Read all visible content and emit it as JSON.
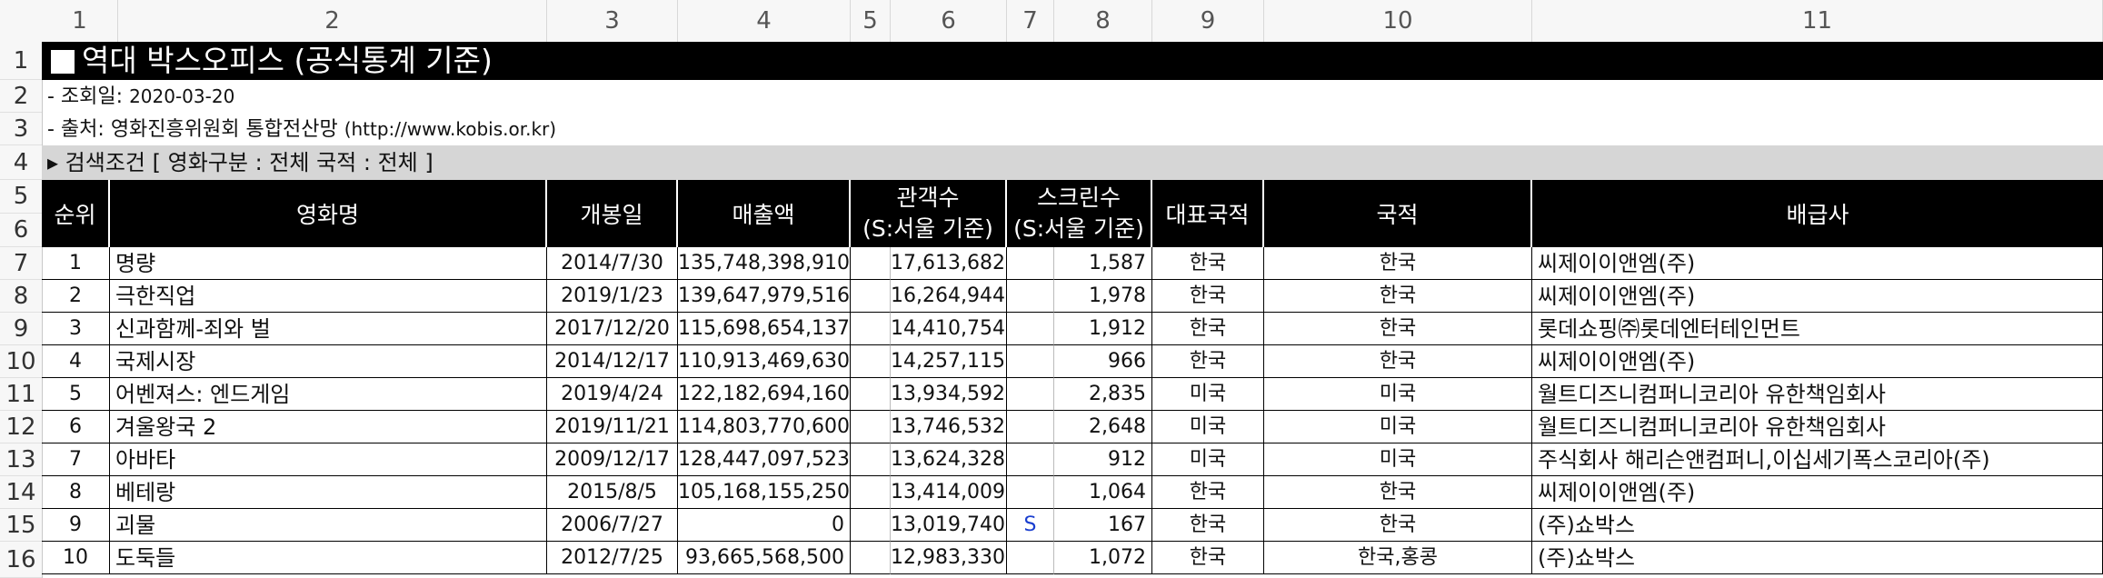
{
  "column_headers": [
    "1",
    "2",
    "3",
    "4",
    "5",
    "6",
    "7",
    "8",
    "9",
    "10",
    "11"
  ],
  "row_headers": [
    "1",
    "2",
    "3",
    "4",
    "5",
    "6",
    "7",
    "8",
    "9",
    "10",
    "11",
    "12",
    "13",
    "14",
    "15",
    "16"
  ],
  "sheet": {
    "title_square": "■",
    "title": "역대 박스오피스 (공식통계 기준)",
    "query_date_label": "- 조회일: ",
    "query_date": "2020-03-20",
    "source_label": "- 출처: 영화진흥위원회 통합전산망 ",
    "source_url": "(http://www.kobis.or.kr)",
    "search_condition": "▸ 검색조건 [ 영화구분 : 전체   국적 : 전체 ]"
  },
  "headers": {
    "rank": "순위",
    "movie": "영화명",
    "release": "개봉일",
    "revenue": "매출액",
    "audience_top": "관객수",
    "audience_bottom": "(S:서울 기준)",
    "screens_top": "스크린수",
    "screens_bottom": "(S:서울 기준)",
    "main_country": "대표국적",
    "country": "국적",
    "distributor": "배급사"
  },
  "rows": [
    {
      "rank": "1",
      "movie": "명량",
      "release": "2014/7/30",
      "revenue": "135,748,398,910",
      "audience_flag": "",
      "audience": "17,613,682",
      "screen_flag": "",
      "screens": "1,587",
      "main_country": "한국",
      "country": "한국",
      "distributor": "씨제이이앤엠(주)"
    },
    {
      "rank": "2",
      "movie": "극한직업",
      "release": "2019/1/23",
      "revenue": "139,647,979,516",
      "audience_flag": "",
      "audience": "16,264,944",
      "screen_flag": "",
      "screens": "1,978",
      "main_country": "한국",
      "country": "한국",
      "distributor": "씨제이이앤엠(주)"
    },
    {
      "rank": "3",
      "movie": "신과함께-죄와 벌",
      "release": "2017/12/20",
      "revenue": "115,698,654,137",
      "audience_flag": "",
      "audience": "14,410,754",
      "screen_flag": "",
      "screens": "1,912",
      "main_country": "한국",
      "country": "한국",
      "distributor": "롯데쇼핑㈜롯데엔터테인먼트"
    },
    {
      "rank": "4",
      "movie": "국제시장",
      "release": "2014/12/17",
      "revenue": "110,913,469,630",
      "audience_flag": "",
      "audience": "14,257,115",
      "screen_flag": "",
      "screens": "966",
      "main_country": "한국",
      "country": "한국",
      "distributor": "씨제이이앤엠(주)"
    },
    {
      "rank": "5",
      "movie": "어벤져스: 엔드게임",
      "release": "2019/4/24",
      "revenue": "122,182,694,160",
      "audience_flag": "",
      "audience": "13,934,592",
      "screen_flag": "",
      "screens": "2,835",
      "main_country": "미국",
      "country": "미국",
      "distributor": "월트디즈니컴퍼니코리아 유한책임회사"
    },
    {
      "rank": "6",
      "movie": "겨울왕국 2",
      "release": "2019/11/21",
      "revenue": "114,803,770,600",
      "audience_flag": "",
      "audience": "13,746,532",
      "screen_flag": "",
      "screens": "2,648",
      "main_country": "미국",
      "country": "미국",
      "distributor": "월트디즈니컴퍼니코리아 유한책임회사"
    },
    {
      "rank": "7",
      "movie": "아바타",
      "release": "2009/12/17",
      "revenue": "128,447,097,523",
      "audience_flag": "",
      "audience": "13,624,328",
      "screen_flag": "",
      "screens": "912",
      "main_country": "미국",
      "country": "미국",
      "distributor": "주식회사 해리슨앤컴퍼니,이십세기폭스코리아(주)"
    },
    {
      "rank": "8",
      "movie": "베테랑",
      "release": "2015/8/5",
      "revenue": "105,168,155,250",
      "audience_flag": "",
      "audience": "13,414,009",
      "screen_flag": "",
      "screens": "1,064",
      "main_country": "한국",
      "country": "한국",
      "distributor": "씨제이이앤엠(주)"
    },
    {
      "rank": "9",
      "movie": "괴물",
      "release": "2006/7/27",
      "revenue": "0",
      "audience_flag": "",
      "audience": "13,019,740",
      "screen_flag": "S",
      "screens": "167",
      "main_country": "한국",
      "country": "한국",
      "distributor": "(주)쇼박스"
    },
    {
      "rank": "10",
      "movie": "도둑들",
      "release": "2012/7/25",
      "revenue": "93,665,568,500",
      "audience_flag": "",
      "audience": "12,983,330",
      "screen_flag": "",
      "screens": "1,072",
      "main_country": "한국",
      "country": "한국,홍콩",
      "distributor": "(주)쇼박스"
    }
  ]
}
